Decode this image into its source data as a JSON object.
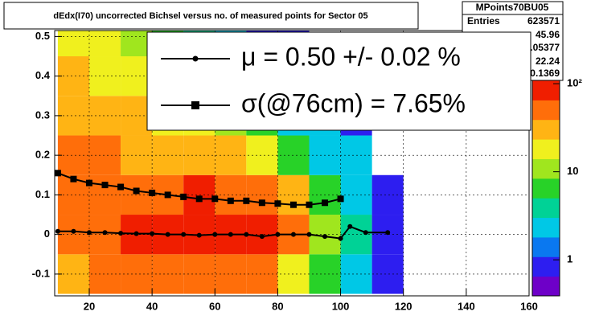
{
  "chart_data": {
    "type": "heatmap",
    "title": "dEdx(I70) uncorrected Bichsel versus no. of measured points for Sector 05",
    "xlim": [
      9,
      160
    ],
    "ylim": [
      -0.155,
      0.515
    ],
    "xticks": [
      20,
      40,
      60,
      80,
      100,
      120,
      140,
      160
    ],
    "yticks": [
      -0.1,
      0,
      0.1,
      0.2,
      0.3,
      0.4,
      0.5
    ],
    "xbins": [
      10,
      20,
      30,
      40,
      50,
      60,
      70,
      80,
      90,
      100,
      110,
      120,
      130
    ],
    "ybins": [
      -0.15,
      -0.05,
      0.05,
      0.15,
      0.25,
      0.35,
      0.45,
      0.515
    ],
    "z": [
      [
        30,
        40,
        45,
        50,
        60,
        60,
        40,
        20,
        8,
        3,
        1,
        0
      ],
      [
        50,
        60,
        70,
        85,
        100,
        100,
        80,
        40,
        12,
        4,
        1,
        0
      ],
      [
        60,
        60,
        60,
        60,
        70,
        65,
        45,
        25,
        8,
        3,
        1,
        0
      ],
      [
        45,
        40,
        35,
        35,
        30,
        25,
        15,
        8,
        3,
        2,
        0,
        0
      ],
      [
        35,
        30,
        25,
        20,
        15,
        10,
        6,
        3,
        2,
        1,
        0,
        0
      ],
      [
        25,
        20,
        15,
        10,
        6,
        4,
        2,
        1,
        1,
        0,
        0,
        0
      ],
      [
        20,
        15,
        10,
        8,
        5,
        3,
        1,
        1,
        0,
        0,
        0,
        0
      ]
    ],
    "log_z": true,
    "zlim": [
      0.39,
      109
    ],
    "zticks": [
      1,
      10,
      {
        "value": 100,
        "label": "10²"
      }
    ],
    "palette": [
      "#6e00c8",
      "#2d1ef0",
      "#0a78f0",
      "#00c8e6",
      "#00d296",
      "#28d228",
      "#a0e61e",
      "#f0f01e",
      "#ffb414",
      "#ff6e0a",
      "#f01e00"
    ],
    "series": [
      {
        "name": "μ  =  0.50 +/-  0.02 %",
        "color": "#000000",
        "marker": "circle",
        "x": [
          10,
          15,
          20,
          25,
          30,
          35,
          40,
          45,
          50,
          55,
          60,
          65,
          70,
          75,
          80,
          85,
          90,
          95,
          100,
          103,
          108,
          115
        ],
        "values": [
          0.008,
          0.008,
          0.005,
          0.005,
          0.003,
          0.002,
          0.002,
          0.0,
          0.0,
          -0.002,
          0.0,
          0.0,
          0.0,
          -0.005,
          0.0,
          0.0,
          0.0,
          -0.005,
          -0.01,
          0.02,
          0.005,
          0.005
        ]
      },
      {
        "name": "σ(@76cm) =  7.65%",
        "color": "#000000",
        "marker": "square",
        "x": [
          10,
          15,
          20,
          25,
          30,
          35,
          40,
          45,
          50,
          55,
          60,
          65,
          70,
          75,
          80,
          85,
          90,
          95,
          100
        ],
        "values": [
          0.155,
          0.14,
          0.13,
          0.125,
          0.12,
          0.11,
          0.105,
          0.1,
          0.095,
          0.09,
          0.09,
          0.085,
          0.085,
          0.08,
          0.078,
          0.075,
          0.075,
          0.08,
          0.09
        ]
      }
    ],
    "stats": {
      "title": "MPoints70BU05",
      "entries_label": "Entries",
      "entries": 623571,
      "values": [
        45.96,
        0.05377,
        22.24,
        0.1369
      ]
    }
  }
}
